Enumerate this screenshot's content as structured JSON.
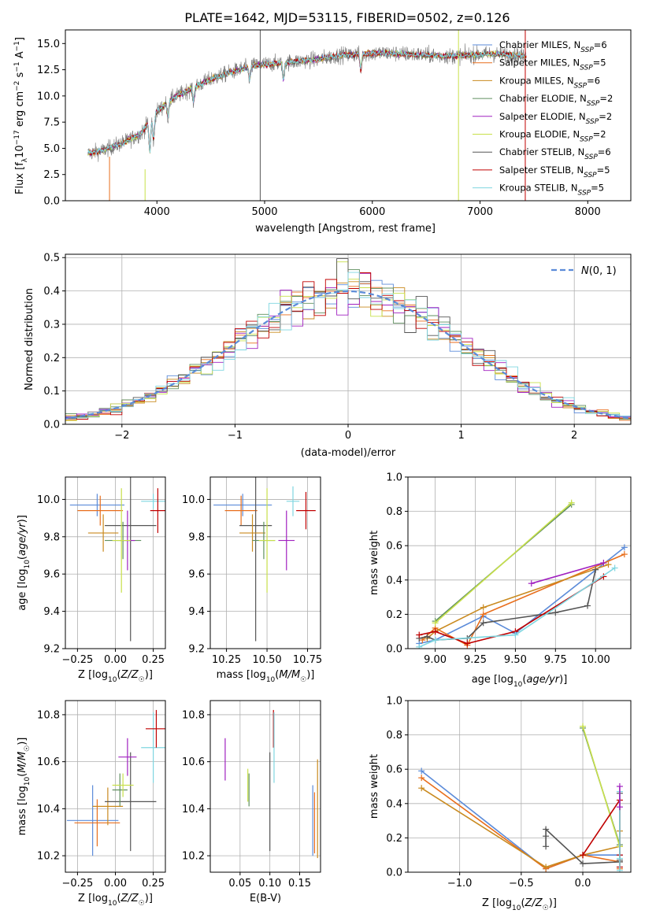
{
  "figure": {
    "title": "PLATE=1642, MJD=53115, FIBERID=0502, z=0.126"
  },
  "series_style": [
    {
      "name": "Chabrier MILES",
      "nssp": "6",
      "color": "#5b8bd9"
    },
    {
      "name": "Salpeter MILES",
      "nssp": "5",
      "color": "#e86e1c"
    },
    {
      "name": "Kroupa MILES",
      "nssp": "6",
      "color": "#c98a1f"
    },
    {
      "name": "Chabrier ELODIE",
      "nssp": "2",
      "color": "#5f8f5f"
    },
    {
      "name": "Salpeter ELODIE",
      "nssp": "2",
      "color": "#a020c0"
    },
    {
      "name": "Kroupa ELODIE",
      "nssp": "2",
      "color": "#c8e04a"
    },
    {
      "name": "Chabrier STELIB",
      "nssp": "6",
      "color": "#555555"
    },
    {
      "name": "Salpeter STELIB",
      "nssp": "5",
      "color": "#c00000"
    },
    {
      "name": "Kroupa STELIB",
      "nssp": "5",
      "color": "#7fd6e0"
    }
  ],
  "chart_data": [
    {
      "type": "line",
      "id": "spectrum",
      "xlabel": "wavelength [Angstrom, rest frame]",
      "ylabel": "Flux [f_λ10^-17 erg cm^-2 s^-1 A^-1]",
      "xlim": [
        3150,
        8400
      ],
      "ylim": [
        0,
        16.3
      ],
      "xticks": [
        4000,
        5000,
        6000,
        7000,
        8000
      ],
      "yticks": [
        0.0,
        2.5,
        5.0,
        7.5,
        10.0,
        12.5,
        15.0
      ],
      "grid": false,
      "legend_position": "top-right",
      "continuum": {
        "x": [
          3350,
          3500,
          3700,
          3850,
          4000,
          4150,
          4300,
          4500,
          4700,
          4900,
          5100,
          5300,
          5500,
          5700,
          5900,
          6100,
          6300,
          6500,
          6700,
          6900,
          7100,
          7300,
          7420
        ],
        "y": [
          4.5,
          4.8,
          5.6,
          6.4,
          8.5,
          9.8,
          10.6,
          11.6,
          12.3,
          12.9,
          13.1,
          13.3,
          13.5,
          13.9,
          14.0,
          14.1,
          14.0,
          13.9,
          13.8,
          13.9,
          14.0,
          13.9,
          13.8
        ]
      },
      "absorption_features": [
        {
          "x": 3934,
          "depth": 3.2
        },
        {
          "x": 3969,
          "depth": 2.5
        },
        {
          "x": 4102,
          "depth": 1.5
        },
        {
          "x": 4340,
          "depth": 1.5
        },
        {
          "x": 4861,
          "depth": 1.3
        },
        {
          "x": 5175,
          "depth": 1.8
        },
        {
          "x": 5893,
          "depth": 1.6
        }
      ],
      "spikes": [
        {
          "x": 4959,
          "color_index": 6
        },
        {
          "x": 6800,
          "color_index": 5
        },
        {
          "x": 7420,
          "color_index": 7
        }
      ]
    },
    {
      "type": "line",
      "id": "residuals",
      "xlabel": "(data-model)/error",
      "ylabel": "Normed distribution",
      "xlim": [
        -2.5,
        2.5
      ],
      "ylim": [
        0,
        0.51
      ],
      "xticks": [
        -2,
        -1,
        0,
        1,
        2
      ],
      "yticks": [
        0.0,
        0.1,
        0.2,
        0.3,
        0.4,
        0.5
      ],
      "grid": true,
      "legend_position": "top-right",
      "legend_label": "N(0, 1)",
      "bin_width": 0.1
    },
    {
      "type": "scatter",
      "id": "age-vs-z",
      "xlabel": "Z [log10(Z/Z☉)]",
      "ylabel": "age [log10(age/yr)]",
      "xlim": [
        -0.33,
        0.33
      ],
      "ylim": [
        9.2,
        10.12
      ],
      "xticks": [
        -0.25,
        0.0,
        0.25
      ],
      "xticklabels": [
        "−0.25",
        "0.00",
        "0.25"
      ],
      "yticks": [
        9.2,
        9.4,
        9.6,
        9.8,
        10.0
      ],
      "yticklabels": [
        "9.2",
        "9.4",
        "9.6",
        "9.8",
        "10.0"
      ],
      "grid": true,
      "points": [
        {
          "s": 0,
          "x": -0.12,
          "y": 9.97,
          "xe": 0.18,
          "ye": 0.06
        },
        {
          "s": 1,
          "x": -0.1,
          "y": 9.94,
          "xe": 0.15,
          "ye": 0.08
        },
        {
          "s": 8,
          "x": 0.25,
          "y": 9.99,
          "xe": 0.08,
          "ye": 0.04
        },
        {
          "s": 7,
          "x": 0.28,
          "y": 9.94,
          "xe": 0.05,
          "ye": 0.12
        },
        {
          "s": 6,
          "x": 0.1,
          "y": 9.86,
          "xe": 0.17,
          "ye": 0.62
        },
        {
          "s": 2,
          "x": -0.08,
          "y": 9.82,
          "xe": 0.1,
          "ye": 0.1
        },
        {
          "s": 3,
          "x": 0.05,
          "y": 9.78,
          "xe": 0.12,
          "ye": 0.1
        },
        {
          "s": 4,
          "x": 0.08,
          "y": 9.78,
          "xe": 0.05,
          "ye": 0.16
        },
        {
          "s": 5,
          "x": 0.04,
          "y": 9.78,
          "xe": 0.06,
          "ye": 0.28
        }
      ]
    },
    {
      "type": "scatter",
      "id": "age-vs-mass",
      "xlabel": "mass [log10(M/M☉)]",
      "ylabel": "",
      "xlim": [
        10.15,
        10.83
      ],
      "ylim": [
        9.2,
        10.12
      ],
      "xticks": [
        10.25,
        10.5,
        10.75
      ],
      "xticklabels": [
        "10.25",
        "10.50",
        "10.75"
      ],
      "yticks": [
        9.2,
        9.4,
        9.6,
        9.8,
        10.0
      ],
      "yticklabels": [
        "9.2",
        "9.4",
        "9.6",
        "9.8",
        "10.0"
      ],
      "grid": true,
      "points": [
        {
          "s": 0,
          "x": 10.35,
          "y": 9.97,
          "xe": 0.18,
          "ye": 0.06
        },
        {
          "s": 1,
          "x": 10.34,
          "y": 9.94,
          "xe": 0.1,
          "ye": 0.08
        },
        {
          "s": 8,
          "x": 10.66,
          "y": 9.99,
          "xe": 0.04,
          "ye": 0.08
        },
        {
          "s": 7,
          "x": 10.74,
          "y": 9.94,
          "xe": 0.06,
          "ye": 0.1
        },
        {
          "s": 6,
          "x": 10.43,
          "y": 9.86,
          "xe": 0.1,
          "ye": 0.62
        },
        {
          "s": 2,
          "x": 10.41,
          "y": 9.82,
          "xe": 0.08,
          "ye": 0.1
        },
        {
          "s": 3,
          "x": 10.48,
          "y": 9.78,
          "xe": 0.07,
          "ye": 0.1
        },
        {
          "s": 4,
          "x": 10.62,
          "y": 9.78,
          "xe": 0.05,
          "ye": 0.16
        },
        {
          "s": 5,
          "x": 10.5,
          "y": 9.78,
          "xe": 0.05,
          "ye": 0.28
        }
      ]
    },
    {
      "type": "line",
      "id": "weight-vs-age",
      "xlabel": "age [log10(age/yr)]",
      "ylabel": "mass weight",
      "xlim": [
        8.83,
        10.22
      ],
      "ylim": [
        0,
        1
      ],
      "xticks": [
        9.0,
        9.25,
        9.5,
        9.75,
        10.0
      ],
      "xticklabels": [
        "9.00",
        "9.25",
        "9.50",
        "9.75",
        "10.00"
      ],
      "yticks": [
        0.0,
        0.2,
        0.4,
        0.6,
        0.8,
        1.0
      ],
      "grid": true,
      "series": [
        {
          "s": 0,
          "x": [
            8.9,
            9.0,
            9.3,
            9.5,
            10.18
          ],
          "y": [
            0.03,
            0.05,
            0.19,
            0.09,
            0.59
          ]
        },
        {
          "s": 1,
          "x": [
            8.92,
            9.0,
            9.2,
            9.3,
            10.18
          ],
          "y": [
            0.05,
            0.12,
            0.02,
            0.2,
            0.55
          ]
        },
        {
          "s": 2,
          "x": [
            8.95,
            9.0,
            9.3,
            10.08
          ],
          "y": [
            0.06,
            0.1,
            0.24,
            0.49
          ]
        },
        {
          "s": 3,
          "x": [
            9.0,
            9.85
          ],
          "y": [
            0.16,
            0.84
          ]
        },
        {
          "s": 5,
          "x": [
            9.0,
            9.85
          ],
          "y": [
            0.15,
            0.85
          ]
        },
        {
          "s": 6,
          "x": [
            8.9,
            8.95,
            9.0,
            9.2,
            9.3,
            9.75,
            9.95,
            10.0
          ],
          "y": [
            0.06,
            0.07,
            0.05,
            0.06,
            0.15,
            0.21,
            0.25,
            0.46
          ]
        },
        {
          "s": 7,
          "x": [
            8.9,
            9.0,
            9.2,
            9.5,
            10.05
          ],
          "y": [
            0.08,
            0.1,
            0.03,
            0.1,
            0.42
          ]
        },
        {
          "s": 8,
          "x": [
            8.9,
            9.0,
            9.5,
            10.12
          ],
          "y": [
            0.01,
            0.05,
            0.08,
            0.47
          ]
        },
        {
          "s": 4,
          "x": [
            9.6,
            10.05
          ],
          "y": [
            0.38,
            0.5
          ]
        }
      ]
    },
    {
      "type": "scatter",
      "id": "mass-vs-z",
      "xlabel": "Z [log10(Z/Z☉)]",
      "ylabel": "mass [log10(M/M☉)]",
      "xlim": [
        -0.33,
        0.33
      ],
      "ylim": [
        10.13,
        10.86
      ],
      "xticks": [
        -0.25,
        0.0,
        0.25
      ],
      "xticklabels": [
        "−0.25",
        "0.00",
        "0.25"
      ],
      "yticks": [
        10.2,
        10.4,
        10.6,
        10.8
      ],
      "yticklabels": [
        "10.2",
        "10.4",
        "10.6",
        "10.8"
      ],
      "grid": true,
      "points": [
        {
          "s": 0,
          "x": -0.15,
          "y": 10.35,
          "xe": 0.17,
          "ye": 0.15
        },
        {
          "s": 1,
          "x": -0.12,
          "y": 10.34,
          "xe": 0.15,
          "ye": 0.1
        },
        {
          "s": 2,
          "x": -0.05,
          "y": 10.41,
          "xe": 0.1,
          "ye": 0.08
        },
        {
          "s": 6,
          "x": 0.1,
          "y": 10.43,
          "xe": 0.17,
          "ye": 0.21
        },
        {
          "s": 3,
          "x": 0.03,
          "y": 10.48,
          "xe": 0.05,
          "ye": 0.07
        },
        {
          "s": 5,
          "x": 0.05,
          "y": 10.5,
          "xe": 0.07,
          "ye": 0.05
        },
        {
          "s": 4,
          "x": 0.08,
          "y": 10.62,
          "xe": 0.06,
          "ye": 0.08
        },
        {
          "s": 8,
          "x": 0.25,
          "y": 10.66,
          "xe": 0.08,
          "ye": 0.15
        },
        {
          "s": 7,
          "x": 0.27,
          "y": 10.74,
          "xe": 0.07,
          "ye": 0.08
        }
      ]
    },
    {
      "type": "scatter",
      "id": "mass-vs-ebv",
      "xlabel": "E(B-V)",
      "ylabel": "",
      "xlim": [
        0.0,
        0.185
      ],
      "ylim": [
        10.13,
        10.86
      ],
      "xticks": [
        0.05,
        0.1,
        0.15
      ],
      "xticklabels": [
        "0.05",
        "0.10",
        "0.15"
      ],
      "yticks": [
        10.2,
        10.4,
        10.6,
        10.8
      ],
      "yticklabels": [
        "10.2",
        "10.4",
        "10.6",
        "10.8"
      ],
      "grid": true,
      "points": [
        {
          "s": 4,
          "x": 0.025,
          "y": 10.61,
          "xe": 0,
          "ye": 0.09
        },
        {
          "s": 5,
          "x": 0.063,
          "y": 10.5,
          "xe": 0,
          "ye": 0.07
        },
        {
          "s": 3,
          "x": 0.065,
          "y": 10.48,
          "xe": 0,
          "ye": 0.07
        },
        {
          "s": 6,
          "x": 0.1,
          "y": 10.43,
          "xe": 0,
          "ye": 0.21
        },
        {
          "s": 7,
          "x": 0.106,
          "y": 10.74,
          "xe": 0,
          "ye": 0.08
        },
        {
          "s": 8,
          "x": 0.107,
          "y": 10.66,
          "xe": 0,
          "ye": 0.15
        },
        {
          "s": 0,
          "x": 0.172,
          "y": 10.35,
          "xe": 0,
          "ye": 0.15
        },
        {
          "s": 1,
          "x": 0.175,
          "y": 10.34,
          "xe": 0,
          "ye": 0.13
        },
        {
          "s": 2,
          "x": 0.18,
          "y": 10.4,
          "xe": 0,
          "ye": 0.21
        }
      ]
    },
    {
      "type": "line",
      "id": "weight-vs-z",
      "xlabel": "Z [log10(Z/Z☉)]",
      "ylabel": "mass weight",
      "xlim": [
        -1.42,
        0.39
      ],
      "ylim": [
        0,
        1
      ],
      "xticks": [
        -1.0,
        -0.5,
        0.0
      ],
      "xticklabels": [
        "−1.0",
        "−0.5",
        "0.0"
      ],
      "yticks": [
        0.0,
        0.2,
        0.4,
        0.6,
        0.8,
        1.0
      ],
      "grid": true,
      "series": [
        {
          "s": 0,
          "x": [
            -1.31,
            -0.3,
            0.0,
            0.3,
            0.3
          ],
          "y": [
            0.59,
            0.02,
            0.1,
            0.1,
            0.06
          ]
        },
        {
          "s": 1,
          "x": [
            -1.31,
            -0.3,
            0.0,
            0.3,
            0.3
          ],
          "y": [
            0.55,
            0.02,
            0.1,
            0.06,
            0.02
          ]
        },
        {
          "s": 2,
          "x": [
            -1.31,
            -0.3,
            0.0,
            0.3,
            0.3
          ],
          "y": [
            0.49,
            0.03,
            0.1,
            0.15,
            0.24
          ]
        },
        {
          "s": 3,
          "x": [
            0.0,
            0.3
          ],
          "y": [
            0.84,
            0.16
          ]
        },
        {
          "s": 5,
          "x": [
            0.0,
            0.3
          ],
          "y": [
            0.85,
            0.15
          ]
        },
        {
          "s": 6,
          "x": [
            -0.3,
            -0.3,
            -0.3,
            0.0,
            0.3,
            0.3,
            0.3
          ],
          "y": [
            0.15,
            0.21,
            0.25,
            0.05,
            0.06,
            0.46,
            0.07
          ]
        },
        {
          "s": 7,
          "x": [
            0.0,
            0.3,
            0.3,
            0.3
          ],
          "y": [
            0.1,
            0.42,
            0.1,
            0.03
          ]
        },
        {
          "s": 8,
          "x": [
            0.3,
            0.3,
            0.3
          ],
          "y": [
            0.47,
            0.08,
            0.01
          ]
        },
        {
          "s": 4,
          "x": [
            0.3,
            0.3
          ],
          "y": [
            0.38,
            0.5
          ]
        }
      ]
    }
  ]
}
